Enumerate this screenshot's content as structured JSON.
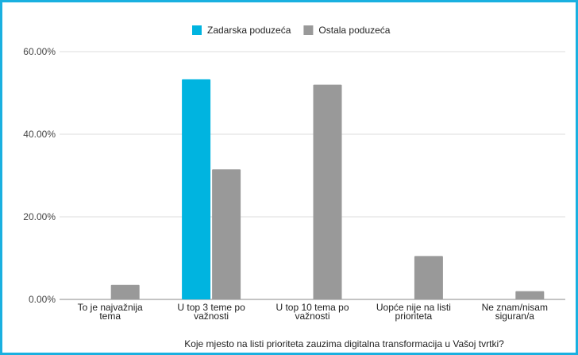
{
  "chart_data": {
    "type": "bar",
    "title": "",
    "xlabel": "Koje mjesto na listi prioriteta zauzima digitalna transformacija u Vašoj tvrtki?",
    "ylabel": "",
    "ylim": [
      0,
      60
    ],
    "y_ticks": [
      "0.00%",
      "20.00%",
      "40.00%",
      "60.00%"
    ],
    "y_tick_values": [
      0,
      20,
      40,
      60
    ],
    "grid": true,
    "legend_position": "top-center",
    "categories": [
      [
        "To je najvažnija",
        "tema"
      ],
      [
        "U top 3 teme po",
        "važnosti"
      ],
      [
        "U top 10 tema po",
        "važnosti"
      ],
      [
        "Uopće nije na listi",
        "prioriteta"
      ],
      [
        "Ne znam/nisam",
        "siguran/a"
      ]
    ],
    "series": [
      {
        "name": "Zadarska poduzeća",
        "color": "#00b4e0",
        "values": [
          0,
          53.3,
          0,
          0,
          0
        ]
      },
      {
        "name": "Ostala poduzeća",
        "color": "#999999",
        "values": [
          3.5,
          31.5,
          52,
          10.5,
          2
        ]
      }
    ]
  }
}
